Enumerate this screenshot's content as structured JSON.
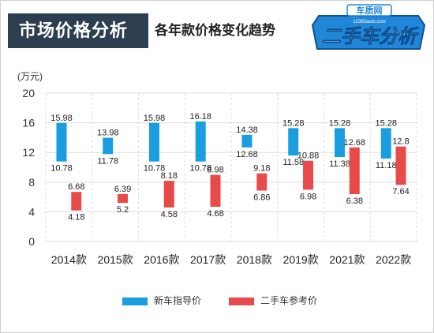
{
  "header": {
    "title": "市场价格分析",
    "subtitle": "各年款价格变化趋势",
    "logo_site": "车质网",
    "logo_domain": "12365auto.com",
    "logo_text": "二手车分析"
  },
  "colors": {
    "new_car": "#1a9ee0",
    "used_car": "#e84a4a",
    "header_bg": "#2d3e50",
    "logo_fill": "#1f86d8"
  },
  "chart_data": {
    "type": "bar",
    "subtype": "floating-range",
    "unit_label": "(万元)",
    "categories": [
      "2014款",
      "2015款",
      "2016款",
      "2017款",
      "2018款",
      "2019款",
      "2021款",
      "2022款"
    ],
    "ylim": [
      0,
      20
    ],
    "yticks": [
      "0",
      "4",
      "8",
      "12",
      "16",
      "20"
    ],
    "grid": true,
    "legend_position": "bottom",
    "series": [
      {
        "name": "新车指导价",
        "high": [
          15.98,
          13.98,
          15.98,
          16.18,
          14.38,
          15.28,
          15.28,
          15.28
        ],
        "low": [
          10.78,
          11.78,
          10.78,
          10.78,
          12.68,
          11.58,
          11.38,
          11.18
        ],
        "high_labels": [
          "15.98",
          "13.98",
          "15.98",
          "16.18",
          "14.38",
          "15.28",
          "15.28",
          "15.28"
        ],
        "low_labels": [
          "10.78",
          "11.78",
          "10.78",
          "10.78",
          "12.68",
          "11.58",
          "11.38",
          "11.18"
        ]
      },
      {
        "name": "二手车参考价",
        "high": [
          6.68,
          6.39,
          8.18,
          8.98,
          9.18,
          10.88,
          12.68,
          12.8
        ],
        "low": [
          4.18,
          5.2,
          4.58,
          4.68,
          6.86,
          6.98,
          6.38,
          7.64
        ],
        "high_labels": [
          "6.68",
          "6.39",
          "8.18",
          "8.98",
          "9.18",
          "10.88",
          "12.68",
          "12.8"
        ],
        "low_labels": [
          "4.18",
          "5.2",
          "4.58",
          "4.68",
          "6.86",
          "6.98",
          "6.38",
          "7.64"
        ]
      }
    ]
  }
}
